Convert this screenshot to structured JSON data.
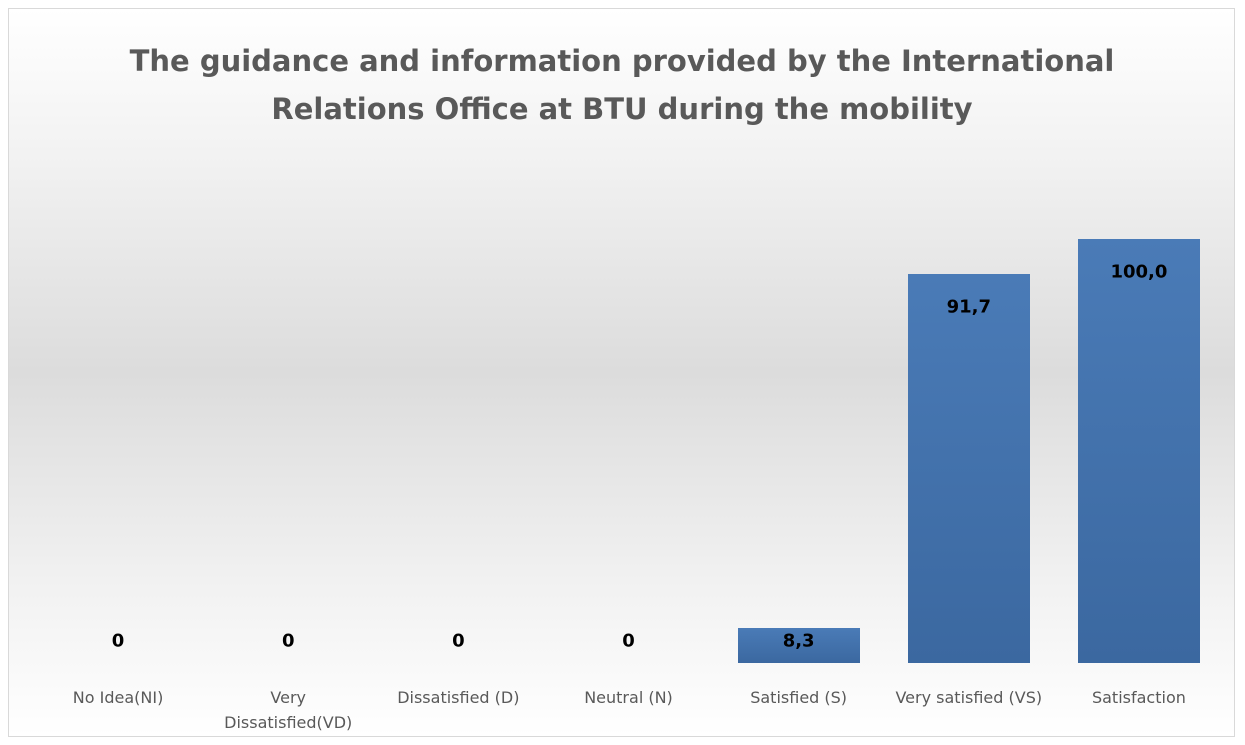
{
  "chart_data": {
    "type": "bar",
    "title": "The guidance and information provided by the International Relations Office at BTU during the mobility",
    "categories": [
      "No Idea(NI)",
      "Very Dissatisfied(VD)",
      "Dissatisfied (D)",
      "Neutral (N)",
      "Satisfied (S)",
      "Very satisfied (VS)",
      "Satisfaction"
    ],
    "values": [
      0,
      0,
      0,
      0,
      8.3,
      91.7,
      100
    ],
    "value_labels": [
      "0",
      "0",
      "0",
      "0",
      "8,3",
      "91,7",
      "100,0"
    ],
    "color": "#4a7bb7"
  }
}
